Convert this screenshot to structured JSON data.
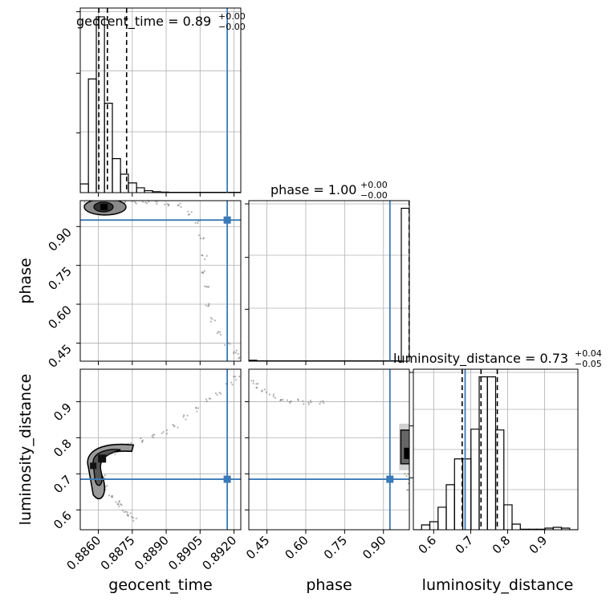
{
  "chart_data": {
    "type": "corner",
    "parameters": [
      "geocent_time",
      "phase",
      "luminosity_distance"
    ],
    "truth_color": "#3b7ab8",
    "truths": {
      "geocent_time": 0.8917,
      "phase": 0.925,
      "luminosity_distance": 0.685
    },
    "ranges": {
      "geocent_time": [
        0.8852,
        0.8923
      ],
      "phase": [
        0.38,
        1.0
      ],
      "luminosity_distance": [
        0.545,
        0.99
      ]
    },
    "ticks": {
      "geocent_time": [
        "0.8860",
        "0.8875",
        "0.8890",
        "0.8905",
        "0.8920"
      ],
      "phase": [
        "0.45",
        "0.60",
        "0.75",
        "0.90"
      ],
      "luminosity_distance": [
        "0.6",
        "0.7",
        "0.8",
        "0.9"
      ]
    },
    "axis_labels": {
      "x": [
        "geocent_time",
        "phase",
        "luminosity_distance"
      ],
      "y": [
        "phase",
        "luminosity_distance"
      ]
    },
    "titles": [
      {
        "param": "geocent_time",
        "text": "geocent_time = 0.89",
        "plus": "+0.00",
        "minus": "−0.00"
      },
      {
        "param": "phase",
        "text": "phase = 1.00",
        "plus": "+0.00",
        "minus": "−0.00"
      },
      {
        "param": "luminosity_distance",
        "text": "luminosity_distance = 0.73",
        "plus": "+0.04",
        "minus": "−0.05"
      }
    ],
    "histograms": {
      "geocent_time": {
        "edges": [
          0.8852,
          0.88556,
          0.88591,
          0.88627,
          0.88662,
          0.88698,
          0.88733,
          0.88769,
          0.88804,
          0.8884,
          0.88875,
          0.88911,
          0.88946,
          0.88982,
          0.89017,
          0.89053,
          0.89088,
          0.89124,
          0.89159,
          0.89195,
          0.8923
        ],
        "counts": [
          9,
          117,
          181,
          92,
          35,
          19,
          10,
          5,
          2,
          1,
          0.5,
          0.3,
          0.3,
          0.3,
          0.3,
          0.3,
          0.3,
          0.3,
          0.3,
          0.3
        ],
        "quantiles": [
          0.88602,
          0.8864,
          0.88725
        ]
      },
      "phase": {
        "edges": [
          0.38,
          0.411,
          0.442,
          0.473,
          0.504,
          0.535,
          0.566,
          0.597,
          0.628,
          0.659,
          0.69,
          0.721,
          0.752,
          0.783,
          0.814,
          0.845,
          0.876,
          0.907,
          0.938,
          0.969,
          1.0
        ],
        "counts": [
          1,
          0.3,
          0.3,
          0.3,
          0.3,
          0.3,
          0.3,
          0.3,
          0.3,
          0.3,
          0.3,
          0.3,
          0.3,
          0.3,
          0.3,
          0.3,
          0.3,
          0.3,
          0.3,
          165
        ],
        "quantiles": [
          0.9995,
          0.9998,
          0.99995
        ]
      },
      "luminosity_distance": {
        "edges": [
          0.545,
          0.5673,
          0.5895,
          0.6118,
          0.634,
          0.6563,
          0.6785,
          0.7008,
          0.723,
          0.7453,
          0.7675,
          0.7898,
          0.812,
          0.8343,
          0.8565,
          0.8788,
          0.901,
          0.9233,
          0.9455,
          0.9678,
          0.99
        ],
        "counts": [
          0,
          6,
          10,
          28,
          56,
          88,
          88,
          125,
          190,
          190,
          124,
          31,
          7,
          0.6,
          0.6,
          0.6,
          2,
          3,
          2,
          0
        ],
        "quantiles": [
          0.677,
          0.728,
          0.772
        ]
      }
    },
    "scatter_2d": [
      {
        "x": "geocent_time",
        "y": "phase",
        "core": {
          "x": 0.8863,
          "y": 0.988
        },
        "points": [
          [
            0.8855,
            0.99
          ],
          [
            0.8858,
            0.993
          ],
          [
            0.8861,
            0.995
          ],
          [
            0.8865,
            0.993
          ],
          [
            0.8868,
            0.992
          ],
          [
            0.8872,
            0.99
          ],
          [
            0.8876,
            0.992
          ],
          [
            0.8881,
            0.993
          ],
          [
            0.8886,
            0.994
          ],
          [
            0.889,
            0.99
          ],
          [
            0.8896,
            0.98
          ],
          [
            0.8901,
            0.955
          ],
          [
            0.8904,
            0.92
          ],
          [
            0.8906,
            0.86
          ],
          [
            0.8907,
            0.78
          ],
          [
            0.8907,
            0.72
          ],
          [
            0.8908,
            0.66
          ],
          [
            0.8909,
            0.6
          ],
          [
            0.8911,
            0.54
          ],
          [
            0.8914,
            0.49
          ],
          [
            0.8917,
            0.45
          ],
          [
            0.892,
            0.42
          ],
          [
            0.8922,
            0.4
          ]
        ]
      },
      {
        "x": "geocent_time",
        "y": "luminosity_distance",
        "core": {
          "x": 0.8862,
          "y": 0.74
        },
        "points": [
          [
            0.8857,
            0.73
          ],
          [
            0.886,
            0.71
          ],
          [
            0.8862,
            0.69
          ],
          [
            0.8864,
            0.66
          ],
          [
            0.8866,
            0.64
          ],
          [
            0.8868,
            0.62
          ],
          [
            0.887,
            0.615
          ],
          [
            0.8872,
            0.6
          ],
          [
            0.8874,
            0.59
          ],
          [
            0.8876,
            0.575
          ],
          [
            0.8866,
            0.76
          ],
          [
            0.887,
            0.775
          ],
          [
            0.8874,
            0.783
          ],
          [
            0.8879,
            0.793
          ],
          [
            0.8884,
            0.803
          ],
          [
            0.8889,
            0.818
          ],
          [
            0.8894,
            0.835
          ],
          [
            0.8899,
            0.856
          ],
          [
            0.8904,
            0.877
          ],
          [
            0.8909,
            0.902
          ],
          [
            0.8913,
            0.925
          ],
          [
            0.8918,
            0.948
          ],
          [
            0.8921,
            0.965
          ]
        ]
      },
      {
        "x": "phase",
        "y": "luminosity_distance",
        "core": {
          "x": 0.998,
          "y": 0.75
        },
        "points": [
          [
            0.39,
            0.955
          ],
          [
            0.41,
            0.945
          ],
          [
            0.44,
            0.93
          ],
          [
            0.47,
            0.916
          ],
          [
            0.5,
            0.908
          ],
          [
            0.54,
            0.9
          ],
          [
            0.58,
            0.9
          ],
          [
            0.62,
            0.898
          ],
          [
            0.66,
            0.896
          ],
          [
            0.99,
            0.72
          ],
          [
            0.995,
            0.7
          ],
          [
            0.997,
            0.68
          ],
          [
            0.999,
            0.66
          ]
        ]
      }
    ]
  }
}
